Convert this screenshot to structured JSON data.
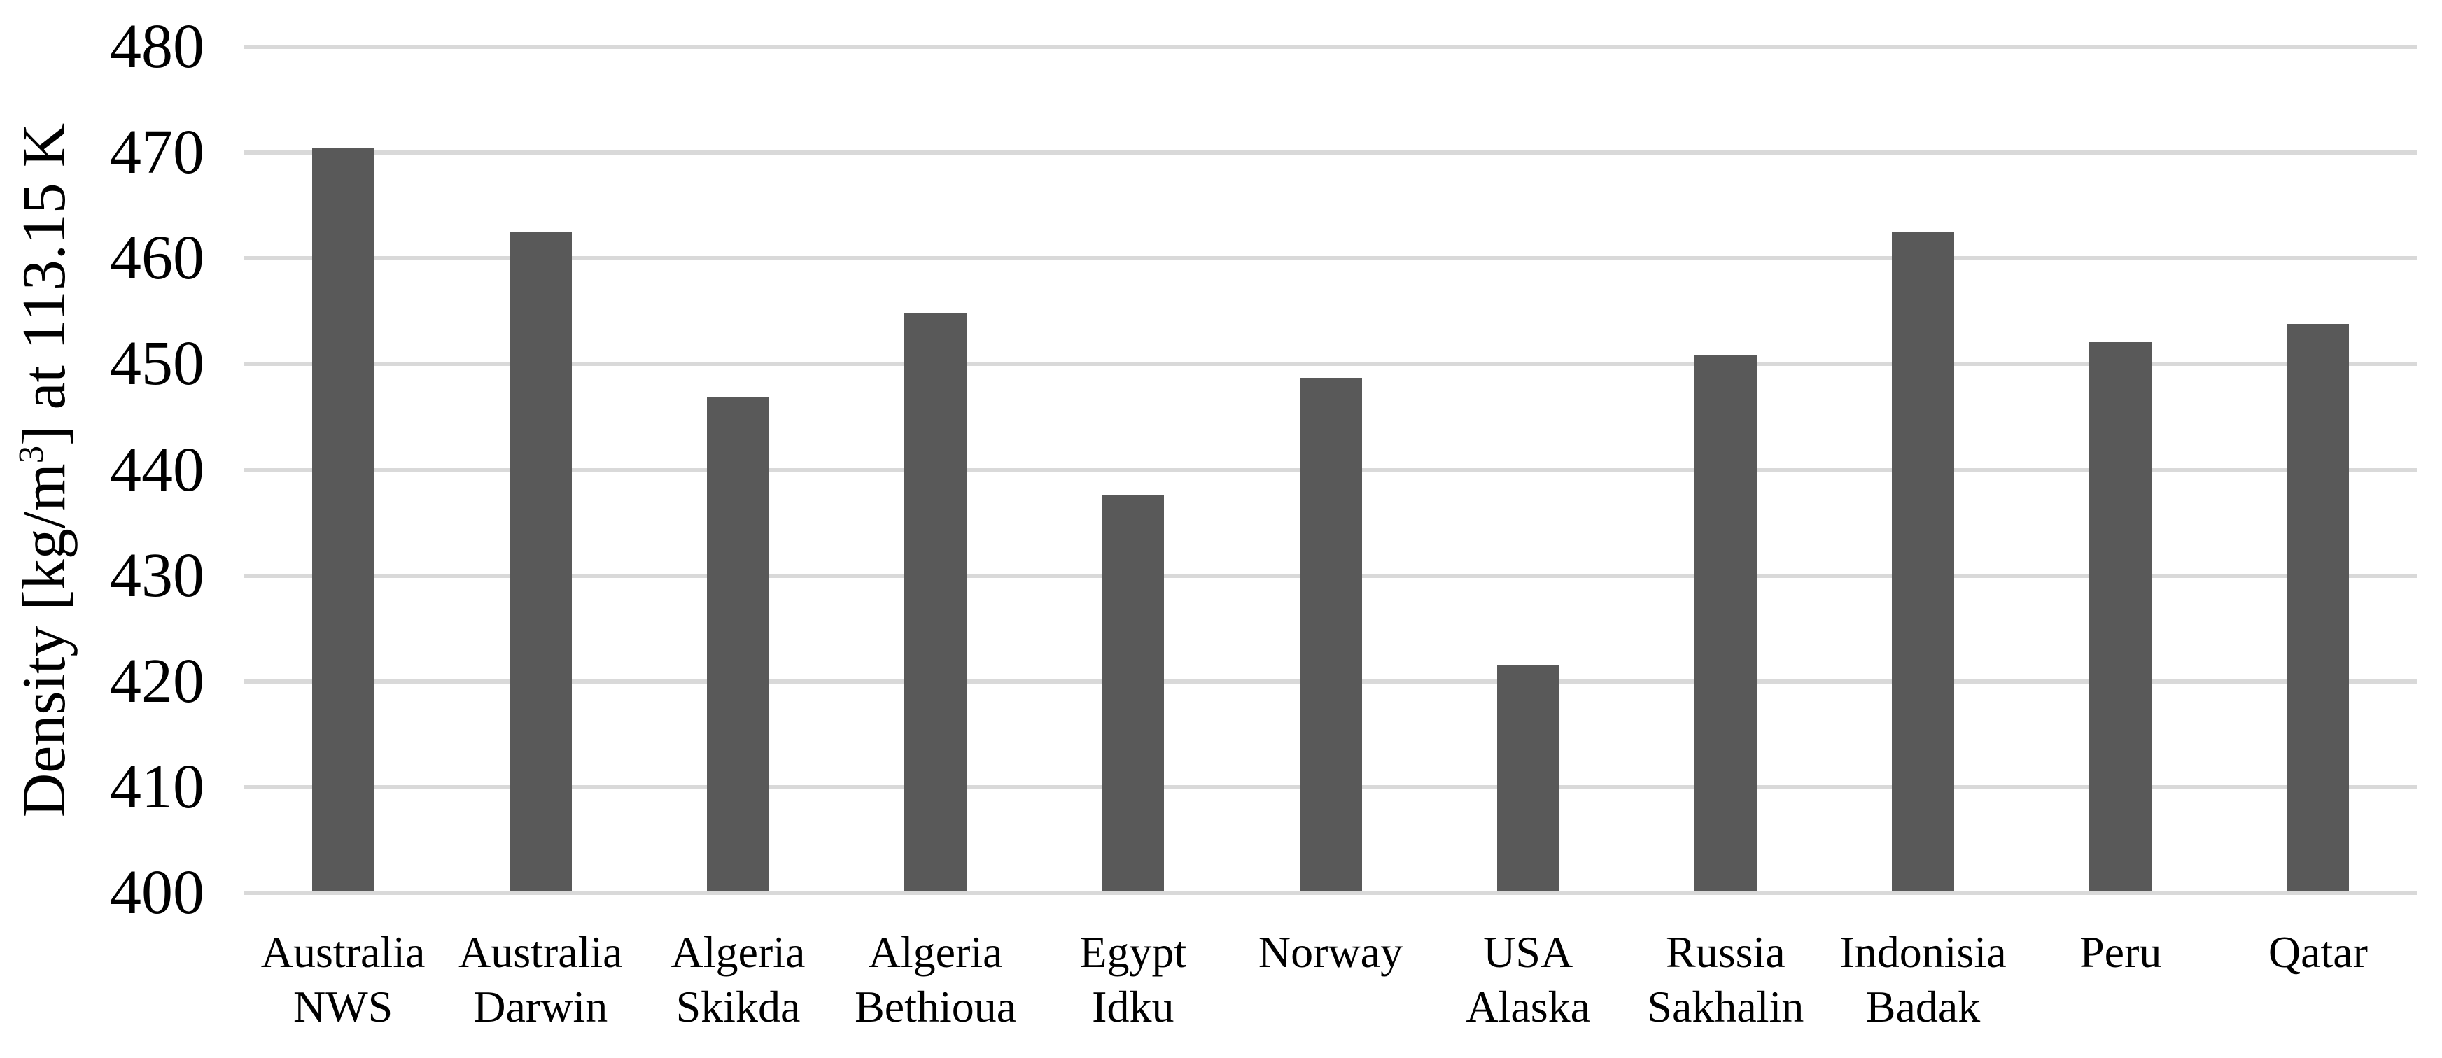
{
  "chart_data": {
    "type": "bar",
    "title": "",
    "xlabel": "",
    "ylabel": "Density [kg/m³] at 113.15 K",
    "categories": [
      "Australia NWS",
      "Australia Darwin",
      "Algeria Skikda",
      "Algeria Bethioua",
      "Egypt Idku",
      "Norway",
      "USA Alaska",
      "Russia Sakhalin",
      "Indonisia Badak",
      "Peru",
      "Qatar"
    ],
    "category_lines": [
      [
        "Australia",
        "NWS"
      ],
      [
        "Australia",
        "Darwin"
      ],
      [
        "Algeria",
        "Skikda"
      ],
      [
        "Algeria",
        "Bethioua"
      ],
      [
        "Egypt",
        "Idku"
      ],
      [
        "Norway"
      ],
      [
        "USA",
        "Alaska"
      ],
      [
        "Russia",
        "Sakhalin"
      ],
      [
        "Indonisia",
        "Badak"
      ],
      [
        "Peru"
      ],
      [
        "Qatar"
      ]
    ],
    "category_slugs": [
      "australia-nws",
      "australia-darwin",
      "algeria-skikda",
      "algeria-bethioua",
      "egypt-idku",
      "norway",
      "usa-alaska",
      "russia-sakhalin",
      "indonisia-badak",
      "peru",
      "qatar"
    ],
    "values": [
      470.2,
      462.3,
      446.7,
      454.6,
      437.4,
      448.5,
      421.4,
      450.6,
      462.3,
      451.9,
      453.6
    ],
    "ylim": [
      400,
      480
    ],
    "ytick_step": 10,
    "ytick_labels": [
      "480",
      "470",
      "460",
      "450",
      "440",
      "430",
      "420",
      "410",
      "400"
    ],
    "grid": "horizontal",
    "legend": "none",
    "bar_color": "#595959",
    "gridline_color": "#d9d9d9",
    "text_color": "#000000",
    "background_color": "#ffffff"
  },
  "axis": {
    "ylabel_parts": {
      "pre": "Density [kg/m",
      "sup": "3",
      "post": "] at 113.15 K"
    }
  }
}
